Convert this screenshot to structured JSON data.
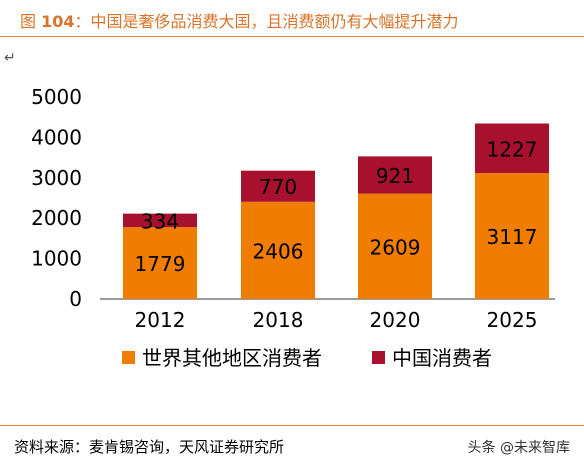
{
  "caption": {
    "prefix": "图 ",
    "number": "104",
    "text": "：中国是奢侈品消费大国，且消费额仍有大幅提升潜力"
  },
  "para_mark": "↵",
  "source": "资料来源：麦肯锡咨询，天风证券研究所",
  "watermark": "头条 @未来智库",
  "chart_data": {
    "type": "bar",
    "stacked": true,
    "categories": [
      "2012",
      "2018",
      "2020",
      "2025"
    ],
    "series": [
      {
        "name": "世界其他地区消费者",
        "color": "#f07d00",
        "values": [
          1779,
          2406,
          2609,
          3117
        ]
      },
      {
        "name": "中国消费者",
        "color": "#a8112e",
        "values": [
          334,
          770,
          921,
          1227
        ]
      }
    ],
    "y_ticks": [
      "0",
      "1000",
      "2000",
      "3000",
      "4000",
      "5000"
    ],
    "ylim": [
      0,
      5000
    ],
    "legend_position": "bottom",
    "grid": false
  }
}
